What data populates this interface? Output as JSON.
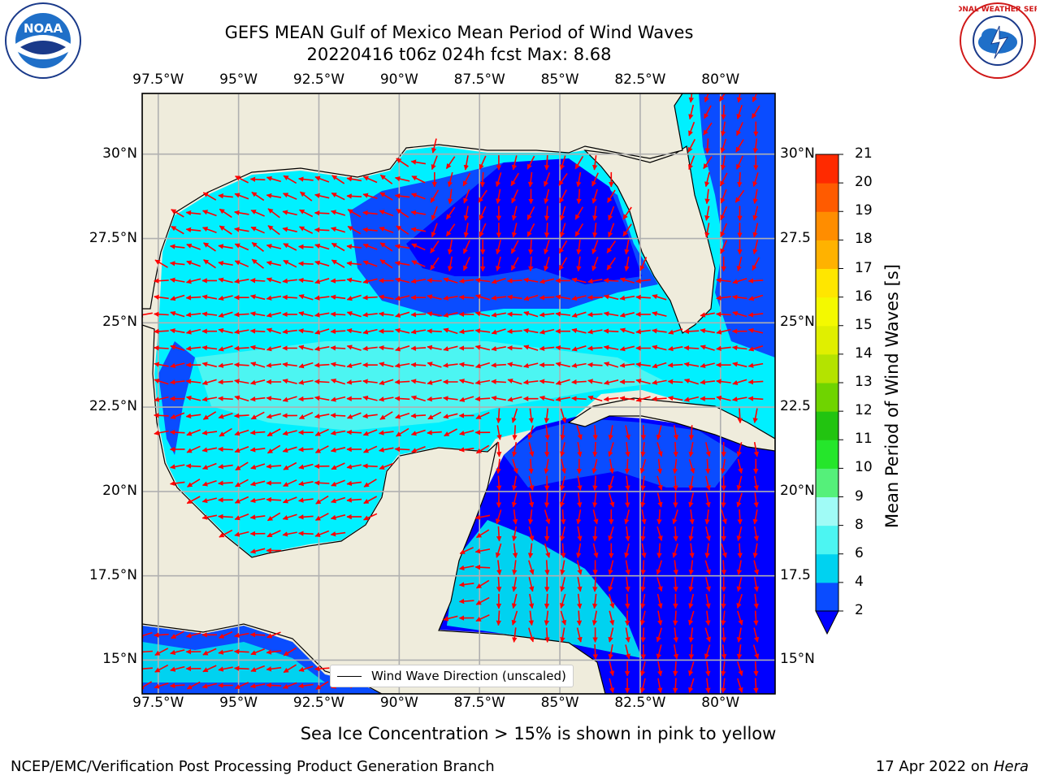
{
  "title": {
    "line1": "GEFS MEAN Gulf of Mexico Mean Period of Wind Waves",
    "line2": "20220416 t06z 024h fcst   Max: 8.68"
  },
  "logos": {
    "left": {
      "icon": "noaa-logo",
      "text": "NOAA"
    },
    "right": {
      "icon": "national-weather-service-logo",
      "text": "NATIONAL WEATHER SERVICE"
    }
  },
  "map": {
    "extent": {
      "lon": [
        -98.0,
        -78.3
      ],
      "lat": [
        14.0,
        31.8
      ]
    },
    "lon_ticks": [
      "97.5°W",
      "95°W",
      "92.5°W",
      "90°W",
      "87.5°W",
      "85°W",
      "82.5°W",
      "80°W"
    ],
    "lat_ticks_left": [
      "15°N",
      "17.5°N",
      "20°N",
      "22.5°N",
      "25°N",
      "27.5°N",
      "30°N"
    ],
    "lat_ticks_right": [
      "15°N",
      "17.5",
      "20°N",
      "22.5",
      "25°N",
      "27.5",
      "30°N"
    ],
    "gridlines": true,
    "colors": {
      "land": "#efecdc",
      "coastline": "#000000",
      "grid": "#b0b0b0",
      "arrows": "#ff0000"
    },
    "legend_label": "Wind Wave Direction (unscaled)",
    "legend_placement": "bottom-center"
  },
  "colorbar": {
    "label": "Mean Period of Wind Waves [s]",
    "ticks": [
      "2",
      "4",
      "6",
      "8",
      "9",
      "10",
      "11",
      "12",
      "13",
      "14",
      "15",
      "16",
      "17",
      "18",
      "19",
      "20",
      "21"
    ],
    "levels": [
      2,
      4,
      6,
      8,
      9,
      10,
      11,
      12,
      13,
      14,
      15,
      16,
      17,
      18,
      19,
      20,
      21
    ],
    "colors": [
      "#0a4cff",
      "#00d2f0",
      "#4cf5f2",
      "#a0fbf6",
      "#55f07a",
      "#25e62b",
      "#22c410",
      "#6fd400",
      "#b4e300",
      "#e0ef00",
      "#f4f900",
      "#ffe600",
      "#ffb200",
      "#ff8d00",
      "#ff5b00",
      "#ff2a00",
      "#ff0000"
    ],
    "extend_color": "#0000ff"
  },
  "footer": {
    "note": "Sea Ice Concentration > 15% is shown in pink to yellow",
    "left": "NCEP/EMC/Verification Post Processing Product Generation Branch",
    "right_date": "17 Apr 2022 on ",
    "right_machine": "Hera"
  }
}
